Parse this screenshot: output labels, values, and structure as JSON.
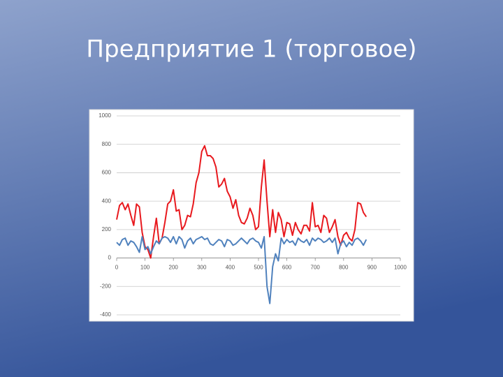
{
  "chart_data": {
    "type": "line",
    "title": "Предприятие 1 (торговое)",
    "x": [
      0,
      10,
      20,
      30,
      40,
      50,
      60,
      70,
      80,
      90,
      100,
      110,
      120,
      130,
      140,
      150,
      160,
      170,
      180,
      190,
      200,
      210,
      220,
      230,
      240,
      250,
      260,
      270,
      280,
      290,
      300,
      310,
      320,
      330,
      340,
      350,
      360,
      370,
      380,
      390,
      400,
      410,
      420,
      430,
      440,
      450,
      460,
      470,
      480,
      490,
      500,
      510,
      520,
      530,
      540,
      550,
      560,
      570,
      580,
      590,
      600,
      610,
      620,
      630,
      640,
      650,
      660,
      670,
      680,
      690,
      700,
      710,
      720,
      730,
      740,
      750,
      760,
      770,
      780,
      790,
      800,
      810,
      820,
      830,
      840,
      850,
      860,
      870,
      880
    ],
    "series": [
      {
        "color": "#e8191e",
        "values": [
          270,
          370,
          390,
          340,
          380,
          300,
          230,
          380,
          360,
          180,
          80,
          60,
          0,
          150,
          280,
          100,
          140,
          250,
          380,
          400,
          480,
          330,
          340,
          200,
          230,
          300,
          290,
          380,
          530,
          600,
          750,
          790,
          720,
          720,
          700,
          640,
          500,
          520,
          560,
          470,
          430,
          350,
          410,
          300,
          250,
          240,
          280,
          350,
          300,
          200,
          220,
          500,
          690,
          400,
          150,
          340,
          180,
          320,
          270,
          150,
          250,
          240,
          160,
          250,
          200,
          170,
          230,
          230,
          190,
          390,
          220,
          230,
          180,
          300,
          280,
          180,
          220,
          270,
          150,
          90,
          160,
          180,
          140,
          120,
          200,
          390,
          380,
          320,
          290
        ]
      },
      {
        "color": "#4f81bd",
        "values": [
          110,
          90,
          130,
          140,
          90,
          120,
          110,
          80,
          40,
          150,
          60,
          80,
          30,
          80,
          120,
          100,
          140,
          150,
          140,
          110,
          150,
          100,
          150,
          130,
          70,
          120,
          140,
          100,
          130,
          140,
          150,
          130,
          140,
          100,
          90,
          110,
          130,
          120,
          80,
          130,
          120,
          90,
          100,
          120,
          140,
          120,
          100,
          130,
          140,
          120,
          110,
          70,
          150,
          -200,
          -320,
          -60,
          30,
          -20,
          140,
          100,
          130,
          110,
          120,
          90,
          140,
          120,
          110,
          130,
          90,
          140,
          120,
          140,
          130,
          110,
          120,
          140,
          110,
          140,
          30,
          100,
          120,
          80,
          110,
          90,
          130,
          140,
          120,
          90,
          130
        ]
      }
    ],
    "xlim": [
      0,
      1000
    ],
    "xticks": [
      0,
      100,
      200,
      300,
      400,
      500,
      600,
      700,
      800,
      900,
      1000
    ],
    "ylim": [
      -400,
      1000
    ],
    "yticks": [
      -400,
      -200,
      0,
      200,
      400,
      600,
      800,
      1000
    ],
    "grid": true
  }
}
